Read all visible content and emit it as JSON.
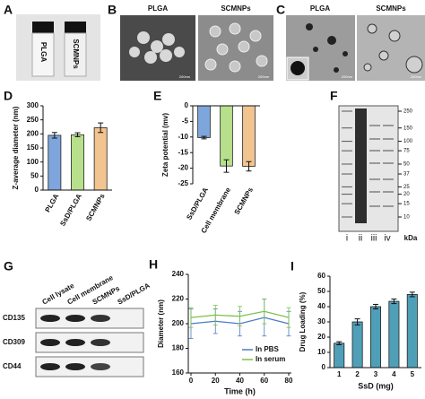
{
  "panels": {
    "A": {
      "label": "A",
      "vials": [
        "PLGA",
        "SCMNPs"
      ]
    },
    "B": {
      "label": "B",
      "titles": [
        "PLGA",
        "SCMNPs"
      ],
      "scale_bars": [
        "200nm",
        "200nm"
      ]
    },
    "C": {
      "label": "C",
      "titles": [
        "PLGA",
        "SCMNPs"
      ],
      "scale_bars": [
        "200nm",
        "200nm"
      ]
    },
    "F": {
      "label": "F",
      "markers": [
        250,
        150,
        100,
        75,
        50,
        37,
        25,
        20,
        15,
        10
      ],
      "unit": "kDa",
      "lanes": [
        "i",
        "ii",
        "iii",
        "iv"
      ]
    },
    "G": {
      "label": "G",
      "columns": [
        "Cell lysate",
        "Cell membrane",
        "SCMNPs",
        "SsD/PLGA"
      ],
      "rows": [
        "CD135",
        "CD309",
        "CD44"
      ]
    }
  },
  "chart_data": [
    {
      "type": "bar",
      "label": "D",
      "ylabel": "Z-average diameter (nm)",
      "categories": [
        "PLGA",
        "SsD/PLGA",
        "SCMNPs"
      ],
      "values": [
        195,
        197,
        222
      ],
      "errors": [
        10,
        7,
        17
      ],
      "colors": [
        "#7ea6dc",
        "#b8e08c",
        "#f2c48f"
      ],
      "ylim": [
        0,
        300
      ],
      "yticks": [
        0,
        50,
        100,
        150,
        200,
        250,
        300
      ]
    },
    {
      "type": "bar",
      "label": "E",
      "ylabel": "Zeta potential (mv)",
      "categories": [
        "SsD/PLGA",
        "Cell membrane",
        "SCMNPs"
      ],
      "values": [
        -10.2,
        -19.3,
        -19.4
      ],
      "errors": [
        0.4,
        2,
        1.5
      ],
      "colors": [
        "#7ea6dc",
        "#b8e08c",
        "#f2c48f"
      ],
      "ylim": [
        -25,
        0
      ],
      "yticks": [
        0,
        -5,
        -10,
        -15,
        -20,
        -25
      ]
    },
    {
      "type": "line",
      "label": "H",
      "xlabel": "Time (h)",
      "ylabel": "Diameter (nm)",
      "x": [
        0,
        20,
        40,
        60,
        80
      ],
      "series": [
        {
          "name": "In PBS",
          "color": "#4a7cc4",
          "values": [
            200,
            202,
            200,
            205,
            200
          ],
          "errors": [
            12,
            10,
            10,
            15,
            10
          ]
        },
        {
          "name": "In serum",
          "color": "#7cc04a",
          "values": [
            205,
            207,
            206,
            210,
            205
          ],
          "errors": [
            8,
            8,
            8,
            10,
            8
          ]
        }
      ],
      "xlim": [
        0,
        80
      ],
      "xticks": [
        0,
        20,
        40,
        60,
        80
      ],
      "ylim": [
        160,
        240
      ],
      "yticks": [
        160,
        180,
        200,
        220,
        240
      ],
      "legend": "lower right"
    },
    {
      "type": "bar",
      "label": "I",
      "xlabel": "SsD (mg)",
      "ylabel": "Drug Loading (%)",
      "categories": [
        "1",
        "2",
        "3",
        "4",
        "5"
      ],
      "values": [
        16,
        30,
        40,
        43.5,
        48
      ],
      "errors": [
        1,
        2,
        1.5,
        1.5,
        1.5
      ],
      "color": "#4f9fb8",
      "ylim": [
        0,
        60
      ],
      "yticks": [
        0,
        10,
        20,
        30,
        40,
        50,
        60
      ]
    }
  ]
}
